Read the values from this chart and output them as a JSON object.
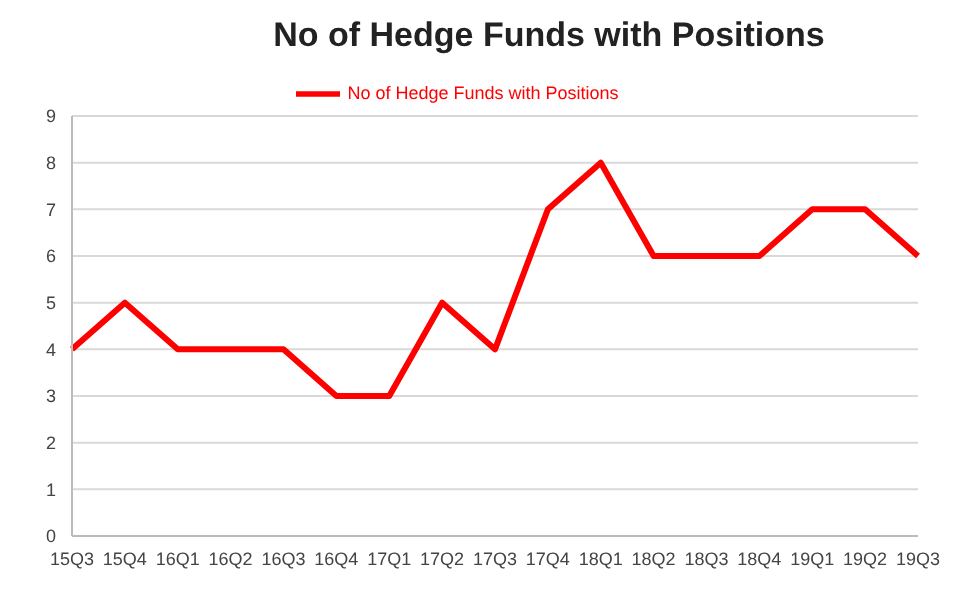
{
  "chart_data": {
    "type": "line",
    "title": "No of Hedge Funds with Positions",
    "categories": [
      "15Q3",
      "15Q4",
      "16Q1",
      "16Q2",
      "16Q3",
      "16Q4",
      "17Q1",
      "17Q2",
      "17Q3",
      "17Q4",
      "18Q1",
      "18Q2",
      "18Q3",
      "18Q4",
      "19Q1",
      "19Q2",
      "19Q3"
    ],
    "series": [
      {
        "name": "No of Hedge Funds with Positions",
        "color": "#ff0000",
        "values": [
          4,
          5,
          4,
          4,
          4,
          3,
          3,
          5,
          4,
          7,
          8,
          6,
          6,
          6,
          7,
          7,
          6
        ]
      }
    ],
    "ylim": [
      0,
      9
    ],
    "yticks": [
      0,
      1,
      2,
      3,
      4,
      5,
      6,
      7,
      8,
      9
    ],
    "grid": "y",
    "legend": "top",
    "marker": "none",
    "line_style": "solid"
  }
}
